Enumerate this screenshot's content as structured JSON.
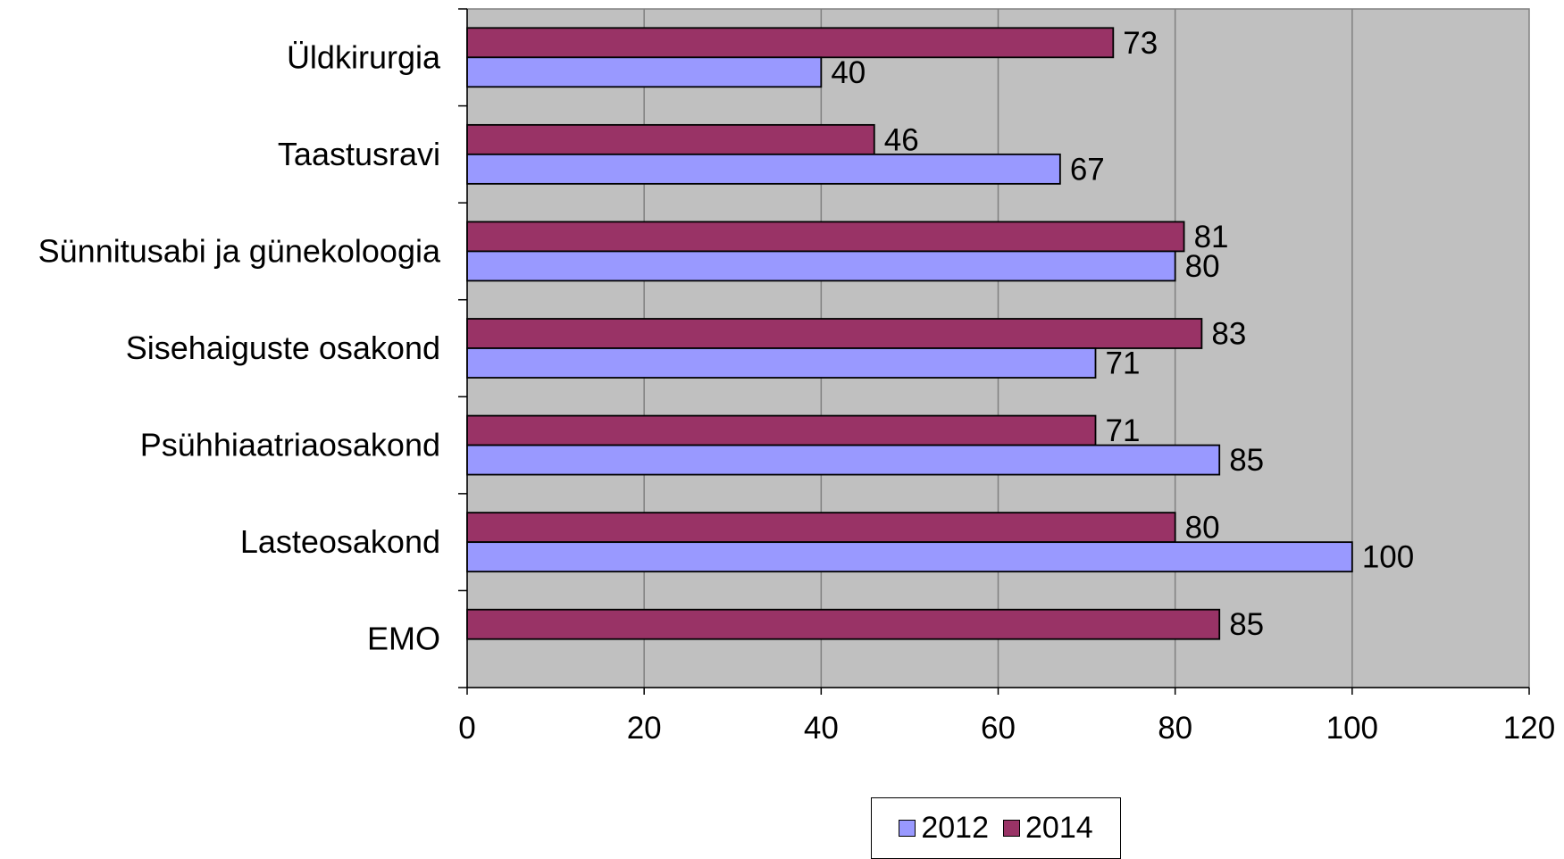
{
  "chart_data": {
    "type": "bar",
    "orientation": "horizontal",
    "categories": [
      "Üldkirurgia",
      "Taastusravi",
      "Sünnitusabi ja günekoloogia",
      "Sisehaiguste osakond",
      "Psühhiaatriaosakond",
      "Lasteosakond",
      "EMO"
    ],
    "series": [
      {
        "name": "2012",
        "color": "#9999FF",
        "values": [
          40,
          67,
          80,
          71,
          85,
          100,
          null
        ]
      },
      {
        "name": "2014",
        "color": "#993366",
        "values": [
          73,
          46,
          81,
          83,
          71,
          80,
          85
        ]
      }
    ],
    "xlim": [
      0,
      120
    ],
    "x_ticks": [
      "0",
      "20",
      "40",
      "60",
      "80",
      "100",
      "120"
    ],
    "grid": true,
    "plot_background": "#C0C0C0",
    "legend_position": "bottom",
    "legend": [
      "2012",
      "2014"
    ]
  }
}
